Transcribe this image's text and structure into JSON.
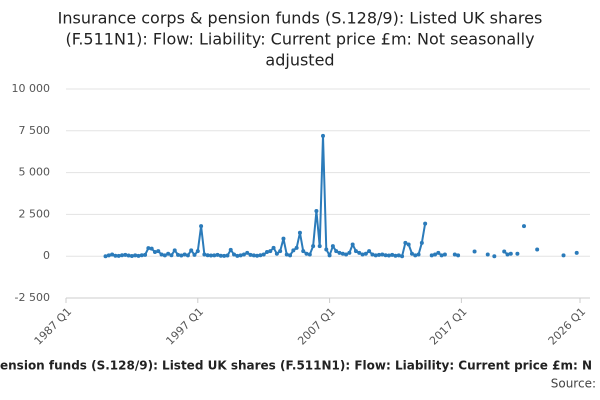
{
  "chart_data": {
    "type": "line",
    "title": [
      "Insurance corps & pension funds (S.128/9): Listed UK shares",
      "(F.511N1): Flow: Liability: Current price £m: Not seasonally",
      "adjusted"
    ],
    "footer_title": "ension funds (S.128/9): Listed UK shares (F.511N1): Flow: Liability: Current price £m: N",
    "source": "Source:",
    "categories": [
      "1987 Q1",
      null,
      null,
      null,
      null,
      null,
      null,
      null,
      null,
      null,
      null,
      null,
      null,
      null,
      null,
      null,
      null,
      null,
      null,
      null,
      null,
      null,
      null,
      null,
      null,
      null,
      null,
      null,
      null,
      null,
      null,
      null,
      null,
      null,
      null,
      null,
      null,
      null,
      null,
      null,
      "1997 Q1",
      null,
      null,
      null,
      null,
      null,
      null,
      null,
      null,
      null,
      null,
      null,
      null,
      null,
      null,
      null,
      null,
      null,
      null,
      null,
      null,
      null,
      null,
      null,
      null,
      null,
      null,
      null,
      null,
      null,
      null,
      null,
      null,
      null,
      null,
      null,
      null,
      null,
      null,
      null,
      "2007 Q1",
      null,
      null,
      null,
      null,
      null,
      null,
      null,
      null,
      null,
      null,
      null,
      null,
      null,
      null,
      null,
      null,
      null,
      null,
      null,
      null,
      null,
      null,
      null,
      null,
      null,
      null,
      null,
      null,
      null,
      null,
      null,
      null,
      null,
      null,
      null,
      null,
      null,
      null,
      null,
      "2017 Q1",
      null,
      null,
      null,
      null,
      null,
      null,
      null,
      null,
      null,
      null,
      null,
      null,
      null,
      null,
      null,
      null,
      null,
      null,
      null,
      null,
      null,
      null,
      null,
      null,
      null,
      null,
      null,
      null,
      null,
      null,
      null,
      null,
      null,
      null,
      null,
      "2026 Q1"
    ],
    "series": [
      {
        "name": "Insurance corps & pension funds (S.128/9): Listed UK shares (F.511N1): Flow: Liability: Current price £m: Not seasonally adjusted",
        "color": "#2b7bba",
        "values": [
          null,
          null,
          null,
          null,
          null,
          null,
          null,
          null,
          null,
          null,
          null,
          null,
          0,
          50,
          100,
          30,
          20,
          60,
          80,
          40,
          10,
          50,
          20,
          60,
          80,
          480,
          450,
          250,
          300,
          100,
          50,
          150,
          60,
          350,
          80,
          40,
          100,
          50,
          350,
          80,
          300,
          1800,
          100,
          60,
          40,
          50,
          80,
          30,
          20,
          40,
          380,
          100,
          20,
          50,
          100,
          200,
          80,
          50,
          30,
          60,
          100,
          250,
          300,
          500,
          150,
          300,
          1050,
          100,
          50,
          350,
          500,
          1400,
          300,
          150,
          100,
          600,
          2700,
          600,
          7200,
          400,
          50,
          600,
          300,
          200,
          150,
          100,
          200,
          700,
          300,
          200,
          100,
          150,
          300,
          100,
          50,
          80,
          100,
          60,
          40,
          80,
          30,
          50,
          0,
          800,
          700,
          150,
          50,
          100,
          800,
          1950,
          null,
          50,
          100,
          200,
          50,
          100,
          null,
          null,
          100,
          50,
          null,
          null,
          null,
          null,
          280,
          null,
          null,
          null,
          100,
          null,
          0,
          null,
          null,
          280,
          100,
          150,
          null,
          150,
          null,
          1800,
          null,
          null,
          null,
          400,
          null,
          null,
          null,
          null,
          null,
          null,
          null,
          50,
          null,
          null,
          null,
          200,
          null
        ]
      }
    ],
    "ylim": [
      -2500,
      10000
    ],
    "yticks": [
      {
        "value": -2500,
        "label": "-2 500"
      },
      0,
      {
        "value": 2500,
        "label": "2 500"
      },
      {
        "value": 5000,
        "label": "5 000"
      },
      {
        "value": 7500,
        "label": "7 500"
      },
      {
        "value": 10000,
        "label": "10 000"
      }
    ],
    "grid": true
  }
}
